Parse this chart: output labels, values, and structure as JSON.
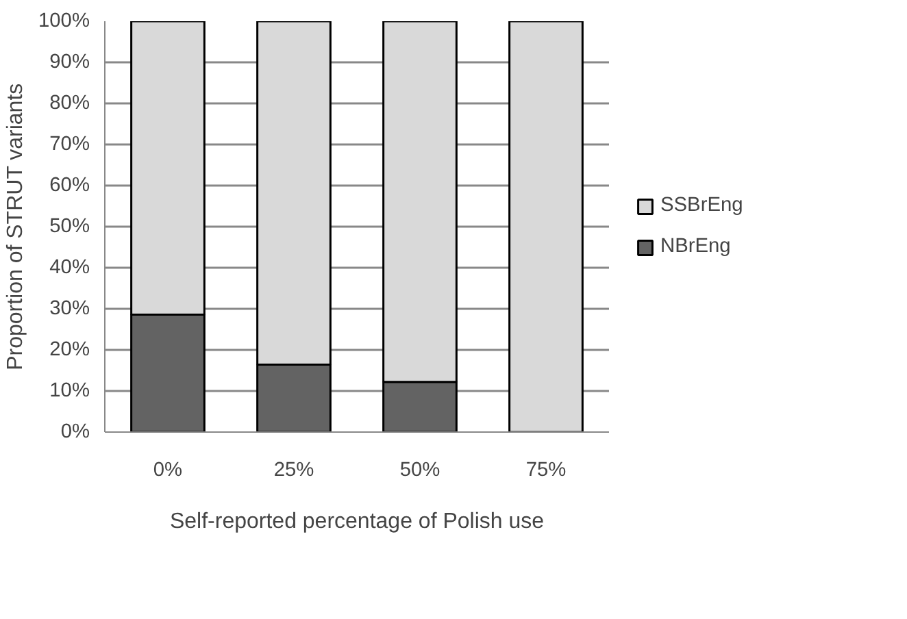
{
  "chart_data": {
    "type": "bar",
    "stacked": true,
    "xlabel": "Self-reported percentage of Polish use",
    "ylabel": "Proportion of STRUT variants",
    "categories": [
      "0%",
      "25%",
      "50%",
      "75%"
    ],
    "series": [
      {
        "name": "NBrEng",
        "color": "#636363",
        "values": [
          28.6,
          16.4,
          12.2,
          0
        ]
      },
      {
        "name": "SSBrEng",
        "color": "#d9d9d9",
        "values": [
          71.4,
          83.6,
          87.8,
          100
        ]
      }
    ],
    "ylim": [
      0,
      100
    ],
    "yticks": [
      {
        "value": 0,
        "label": "0%"
      },
      {
        "value": 10,
        "label": "10%"
      },
      {
        "value": 20,
        "label": "20%"
      },
      {
        "value": 30,
        "label": "30%"
      },
      {
        "value": 40,
        "label": "40%"
      },
      {
        "value": 50,
        "label": "50%"
      },
      {
        "value": 60,
        "label": "60%"
      },
      {
        "value": 70,
        "label": "70%"
      },
      {
        "value": 80,
        "label": "80%"
      },
      {
        "value": 90,
        "label": "90%"
      },
      {
        "value": 100,
        "label": "100%"
      }
    ],
    "grid": "y",
    "legend": "right"
  }
}
